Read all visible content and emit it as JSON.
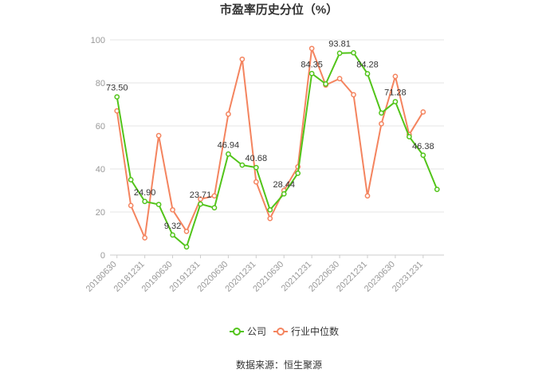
{
  "chart_data": {
    "type": "line",
    "title": "市盈率历史分位（%）",
    "source": "数据来源：恒生聚源",
    "ylim": [
      0,
      100
    ],
    "y_ticks": [
      0,
      20,
      40,
      60,
      80,
      100
    ],
    "x": [
      "20180630",
      "20180930",
      "20181231",
      "20190331",
      "20190630",
      "20190930",
      "20191231",
      "20200331",
      "20200630",
      "20200930",
      "20201231",
      "20210331",
      "20210630",
      "20210930",
      "20211231",
      "20220331",
      "20220630",
      "20220930",
      "20221231",
      "20230331",
      "20230630",
      "20230930",
      "20231231",
      "20240331"
    ],
    "x_tick_labels": [
      "20180630",
      "20181231",
      "20190630",
      "20191231",
      "20200630",
      "20201231",
      "20210630",
      "20211231",
      "20220630",
      "20221231",
      "20230630",
      "20231231"
    ],
    "grid": true,
    "legend_position": "bottom",
    "series": [
      {
        "name": "公司",
        "color": "#52c41a",
        "values": [
          73.5,
          35.0,
          24.9,
          23.5,
          9.32,
          3.8,
          23.71,
          22.0,
          46.94,
          41.8,
          40.68,
          21.0,
          28.44,
          38.0,
          84.35,
          79.5,
          93.81,
          94.0,
          84.28,
          66.0,
          71.28,
          55.0,
          46.38,
          30.5
        ],
        "labels": {
          "0": "73.50",
          "2": "24.90",
          "4": "9.32",
          "6": "23.71",
          "8": "46.94",
          "10": "40.68",
          "12": "28.44",
          "14": "84.35",
          "16": "93.81",
          "18": "84.28",
          "20": "71.28",
          "22": "46.38"
        }
      },
      {
        "name": "行业中位数",
        "color": "#f4845f",
        "values": [
          67.0,
          23.0,
          8.0,
          55.5,
          21.0,
          11.0,
          26.0,
          27.5,
          65.5,
          91.0,
          34.0,
          17.0,
          30.0,
          41.0,
          96.0,
          79.0,
          82.0,
          74.5,
          27.5,
          61.0,
          83.0,
          56.0,
          66.5,
          null
        ]
      }
    ]
  }
}
